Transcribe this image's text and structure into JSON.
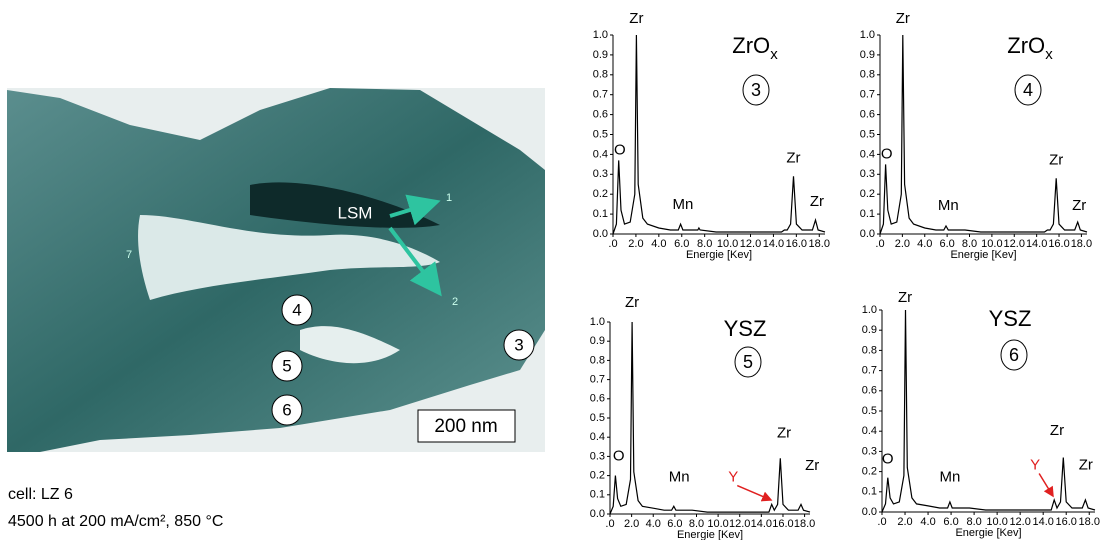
{
  "micrograph": {
    "lsm": "LSM",
    "points": [
      "1",
      "2",
      "7"
    ],
    "circles": [
      "4",
      "5",
      "6",
      "3"
    ],
    "scale_bar": "200 nm"
  },
  "caption": [
    "cell: LZ 6",
    "4500 h at 200 mA/cm², 850 °C"
  ],
  "chart_data": [
    {
      "type": "line",
      "title": "ZrO",
      "title_sub": "x",
      "circle": "3",
      "xlabel": "Energie [Kev]",
      "color": "#000000",
      "x": [
        0,
        0.3,
        0.5,
        0.7,
        1.0,
        1.5,
        1.9,
        2.04,
        2.2,
        2.6,
        3.0,
        4.0,
        5.0,
        5.7,
        5.9,
        6.1,
        7.0,
        7.4,
        7.5,
        7.6,
        9.0,
        11.0,
        13.0,
        14.7,
        14.96,
        15.2,
        15.5,
        15.75,
        16.0,
        16.5,
        17.4,
        17.67,
        17.9,
        18.5
      ],
      "values": [
        0,
        0.05,
        0.37,
        0.12,
        0.05,
        0.06,
        0.2,
        1.0,
        0.25,
        0.08,
        0.05,
        0.03,
        0.02,
        0.02,
        0.05,
        0.02,
        0.02,
        0.02,
        0.03,
        0.02,
        0.01,
        0.01,
        0.01,
        0.01,
        0.02,
        0.02,
        0.05,
        0.29,
        0.05,
        0.02,
        0.02,
        0.07,
        0.02,
        0.01
      ],
      "xlim": [
        0,
        18.5
      ],
      "ylim": [
        0,
        1.0
      ],
      "xticks": [
        {
          "value": 0,
          "label": ".0"
        },
        {
          "value": 2,
          "label": "2.0"
        },
        {
          "value": 4,
          "label": "4.0"
        },
        {
          "value": 6,
          "label": "6.0"
        },
        {
          "value": 8,
          "label": "8.0"
        },
        {
          "value": 10,
          "label": "10.0"
        },
        {
          "value": 12,
          "label": "12.0"
        },
        {
          "value": 14,
          "label": "14.0"
        },
        {
          "value": 16,
          "label": "16.0"
        },
        {
          "value": 18,
          "label": "18.0"
        }
      ],
      "yticks": [
        {
          "value": 0,
          "label": "0.0"
        },
        0.1,
        0.2,
        0.3,
        0.4,
        0.5,
        0.6,
        0.7,
        0.8,
        0.9,
        {
          "value": 1,
          "label": "1.0"
        }
      ],
      "annotations": [
        {
          "text": "Zr",
          "x": 2.04,
          "y": 1.08
        },
        {
          "text": "O",
          "x": 0.6,
          "y": 0.42
        },
        {
          "text": "Mn",
          "x": 6.1,
          "y": 0.145
        },
        {
          "text": "Zr",
          "x": 15.75,
          "y": 0.38
        },
        {
          "text": "Zr",
          "x": 17.8,
          "y": 0.16
        }
      ]
    },
    {
      "type": "line",
      "title": "ZrO",
      "title_sub": "x",
      "circle": "4",
      "xlabel": "Energie [Kev]",
      "color": "#000000",
      "x": [
        0,
        0.3,
        0.5,
        0.7,
        1.0,
        1.5,
        1.9,
        2.04,
        2.2,
        2.6,
        3.0,
        4.0,
        5.0,
        5.7,
        5.9,
        6.1,
        7.0,
        7.4,
        7.5,
        7.6,
        9.0,
        11.0,
        13.0,
        14.7,
        14.96,
        15.2,
        15.5,
        15.75,
        16.0,
        16.5,
        17.4,
        17.67,
        17.9,
        18.5
      ],
      "values": [
        0,
        0.05,
        0.35,
        0.12,
        0.05,
        0.06,
        0.2,
        1.0,
        0.25,
        0.08,
        0.05,
        0.03,
        0.02,
        0.02,
        0.04,
        0.02,
        0.02,
        0.02,
        0.02,
        0.02,
        0.01,
        0.01,
        0.01,
        0.01,
        0.02,
        0.02,
        0.05,
        0.28,
        0.05,
        0.02,
        0.02,
        0.06,
        0.02,
        0.01
      ],
      "xlim": [
        0,
        18.5
      ],
      "ylim": [
        0,
        1.0
      ],
      "xticks": [
        {
          "value": 0,
          "label": ".0"
        },
        {
          "value": 2,
          "label": "2.0"
        },
        {
          "value": 4,
          "label": "4.0"
        },
        {
          "value": 6,
          "label": "6.0"
        },
        {
          "value": 8,
          "label": "8.0"
        },
        {
          "value": 10,
          "label": "10.0"
        },
        {
          "value": 12,
          "label": "12.0"
        },
        {
          "value": 14,
          "label": "14.0"
        },
        {
          "value": 16,
          "label": "16.0"
        },
        {
          "value": 18,
          "label": "18.0"
        }
      ],
      "yticks": [
        {
          "value": 0,
          "label": "0.0"
        },
        0.1,
        0.2,
        0.3,
        0.4,
        0.5,
        0.6,
        0.7,
        0.8,
        0.9,
        {
          "value": 1,
          "label": "1.0"
        }
      ],
      "annotations": [
        {
          "text": "Zr",
          "x": 2.04,
          "y": 1.08
        },
        {
          "text": "O",
          "x": 0.6,
          "y": 0.4
        },
        {
          "text": "Mn",
          "x": 6.1,
          "y": 0.14
        },
        {
          "text": "Zr",
          "x": 15.75,
          "y": 0.37
        },
        {
          "text": "Zr",
          "x": 17.8,
          "y": 0.14
        }
      ]
    },
    {
      "type": "line",
      "title": "YSZ",
      "circle": "5",
      "xlabel": "Energie [Kev]",
      "color": "#000000",
      "x": [
        0,
        0.3,
        0.5,
        0.7,
        1.0,
        1.5,
        1.9,
        2.04,
        2.2,
        2.6,
        3.0,
        4.0,
        5.0,
        5.7,
        5.9,
        6.1,
        7.0,
        7.4,
        7.5,
        7.6,
        9.0,
        11.0,
        13.0,
        14.7,
        14.96,
        15.2,
        15.5,
        15.75,
        16.0,
        16.5,
        17.4,
        17.67,
        17.9,
        18.5
      ],
      "values": [
        0,
        0.04,
        0.2,
        0.08,
        0.04,
        0.05,
        0.18,
        1.0,
        0.22,
        0.07,
        0.04,
        0.03,
        0.02,
        0.02,
        0.04,
        0.02,
        0.02,
        0.02,
        0.02,
        0.02,
        0.01,
        0.01,
        0.01,
        0.01,
        0.05,
        0.02,
        0.05,
        0.29,
        0.05,
        0.02,
        0.02,
        0.05,
        0.02,
        0.01
      ],
      "xlim": [
        0,
        18.5
      ],
      "ylim": [
        0,
        1.0
      ],
      "xticks": [
        {
          "value": 0,
          "label": ".0"
        },
        {
          "value": 2,
          "label": "2.0"
        },
        {
          "value": 4,
          "label": "4.0"
        },
        {
          "value": 6,
          "label": "6.0"
        },
        {
          "value": 8,
          "label": "8.0"
        },
        {
          "value": 10,
          "label": "10.0"
        },
        {
          "value": 12,
          "label": "12.0"
        },
        {
          "value": 14,
          "label": "14.0"
        },
        {
          "value": 16,
          "label": "16.0"
        },
        {
          "value": 18,
          "label": "18.0"
        }
      ],
      "yticks": [
        {
          "value": 0,
          "label": "0.0"
        },
        0.1,
        0.2,
        0.3,
        0.4,
        0.5,
        0.6,
        0.7,
        0.8,
        0.9,
        {
          "value": 1,
          "label": "1.0"
        }
      ],
      "annotations": [
        {
          "text": "Zr",
          "x": 2.04,
          "y": 1.1
        },
        {
          "text": "O",
          "x": 0.8,
          "y": 0.3
        },
        {
          "text": "Mn",
          "x": 6.4,
          "y": 0.19
        },
        {
          "text": "Y",
          "x": 11.4,
          "y": 0.19,
          "color": "#e02020",
          "arrow_to": [
            14.96,
            0.06
          ]
        },
        {
          "text": "Zr",
          "x": 16.1,
          "y": 0.42
        },
        {
          "text": "Zr",
          "x": 18.7,
          "y": 0.25
        }
      ]
    },
    {
      "type": "line",
      "title": "YSZ",
      "circle": "6",
      "xlabel": "Energie [Kev]",
      "color": "#000000",
      "x": [
        0,
        0.3,
        0.5,
        0.7,
        1.0,
        1.5,
        1.9,
        2.04,
        2.2,
        2.6,
        3.0,
        4.0,
        5.0,
        5.7,
        5.9,
        6.1,
        7.0,
        7.4,
        7.5,
        7.6,
        9.0,
        11.0,
        13.0,
        14.7,
        14.96,
        15.2,
        15.5,
        15.75,
        16.0,
        16.5,
        17.4,
        17.67,
        17.9,
        18.5
      ],
      "values": [
        0,
        0.04,
        0.17,
        0.07,
        0.04,
        0.05,
        0.18,
        1.0,
        0.22,
        0.07,
        0.04,
        0.03,
        0.02,
        0.02,
        0.05,
        0.02,
        0.02,
        0.02,
        0.02,
        0.02,
        0.01,
        0.01,
        0.01,
        0.01,
        0.06,
        0.02,
        0.05,
        0.27,
        0.05,
        0.02,
        0.02,
        0.06,
        0.02,
        0.01
      ],
      "xlim": [
        0,
        18.5
      ],
      "ylim": [
        0,
        1.0
      ],
      "xticks": [
        {
          "value": 0,
          "label": ".0"
        },
        {
          "value": 2,
          "label": "2.0"
        },
        {
          "value": 4,
          "label": "4.0"
        },
        {
          "value": 6,
          "label": "6.0"
        },
        {
          "value": 8,
          "label": "8.0"
        },
        {
          "value": 10,
          "label": "10.0"
        },
        {
          "value": 12,
          "label": "12.0"
        },
        {
          "value": 14,
          "label": "14.0"
        },
        {
          "value": 16,
          "label": "16.0"
        },
        {
          "value": 18,
          "label": "18.0"
        }
      ],
      "yticks": [
        {
          "value": 0,
          "label": "0.0"
        },
        0.1,
        0.2,
        0.3,
        0.4,
        0.5,
        0.6,
        0.7,
        0.8,
        0.9,
        {
          "value": 1,
          "label": "1.0"
        }
      ],
      "annotations": [
        {
          "text": "Zr",
          "x": 2.0,
          "y": 1.06
        },
        {
          "text": "O",
          "x": 0.5,
          "y": 0.26
        },
        {
          "text": "Mn",
          "x": 5.9,
          "y": 0.17
        },
        {
          "text": "Y",
          "x": 13.3,
          "y": 0.23,
          "color": "#e02020",
          "arrow_to": [
            14.96,
            0.07
          ]
        },
        {
          "text": "Zr",
          "x": 15.2,
          "y": 0.4
        },
        {
          "text": "Zr",
          "x": 17.7,
          "y": 0.23
        }
      ]
    }
  ]
}
